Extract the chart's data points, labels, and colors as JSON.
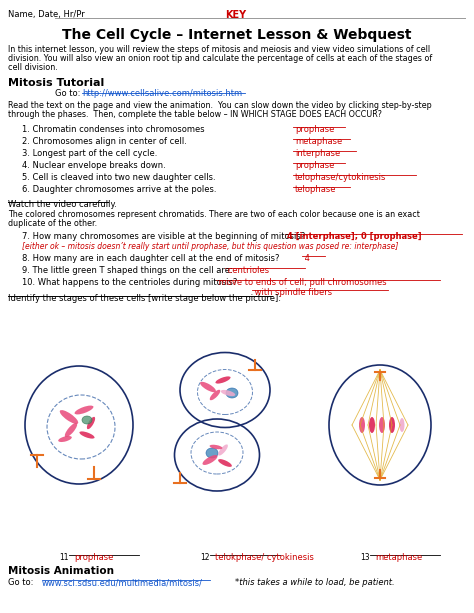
{
  "title": "The Cell Cycle – Internet Lesson & Webquest",
  "name_line": "Name, Date, Hr/Pr",
  "key_label": "KEY",
  "bg_color": "#ffffff",
  "text_color": "#000000",
  "red_color": "#cc0000",
  "blue_link_color": "#1155cc",
  "intro_lines": [
    "In this internet lesson, you will review the steps of mitosis and meiosis and view video simulations of cell",
    "division. You will also view an onion root tip and calculate the percentage of cells at each of the stages of",
    "cell division."
  ],
  "section1_header": "Mitosis Tutorial",
  "section1_url": "http://www.cellsalive.com/mitosis.htm",
  "inst_lines": [
    "Read the text on the page and view the animation.  You can slow down the video by clicking step-by-step",
    "through the phases.  Then, complete the table below – IN WHICH STAGE DOES EACH OCCUR?"
  ],
  "questions": [
    {
      "num": "1.",
      "text": "Chromatin condenses into chromosomes",
      "answer": "prophase"
    },
    {
      "num": "2.",
      "text": "Chromosomes align in center of cell.",
      "answer": "metaphase"
    },
    {
      "num": "3.",
      "text": "Longest part of the cell cycle.",
      "answer": "interphase"
    },
    {
      "num": "4.",
      "text": "Nuclear envelope breaks down.",
      "answer": "prophase"
    },
    {
      "num": "5.",
      "text": "Cell is cleaved into two new daughter cells.",
      "answer": "telophase/cytokinesis"
    },
    {
      "num": "6.",
      "text": "Daughter chromosomes arrive at the poles.",
      "answer": "telophase"
    }
  ],
  "watch_text": "Watch the video carefully.",
  "chrom_lines": [
    "The colored chromosomes represent chromatids. There are two of each color because one is an exact",
    "duplicate of the other."
  ],
  "q7_text": "7. How many chromosomes are visible at the beginning of mitosis?",
  "q7_answer": " 4 [interphase]; 0 [prophase]",
  "q7_note": "[either ok – mitosis doesn’t really start until prophase, but this question was posed re: interphase]",
  "q8_text": "8. How many are in each daughter cell at the end of mitosis?",
  "q8_answer": " 4",
  "q9_text": "9. The little green T shaped things on the cell are:",
  "q9_answer": " centrioles",
  "q10_text": "10. What happens to the centrioles during mitosis?",
  "q10_answer": " move to ends of cell; pull chromosomes",
  "q10_answer2": " with spindle fibers",
  "identify_text": "Identify the stages of these cells [write stage below the picture]:",
  "cell_labels": [
    "prophase",
    "telokphase/ cytokinesis",
    "metaphase"
  ],
  "cell_nums": [
    "11",
    "12",
    "13"
  ],
  "section2_header": "Mitosis Animation",
  "section2_url": "www.sci.sdsu.edu/multimedia/mitosis/",
  "section2_note": "*this takes a while to load, be patient."
}
